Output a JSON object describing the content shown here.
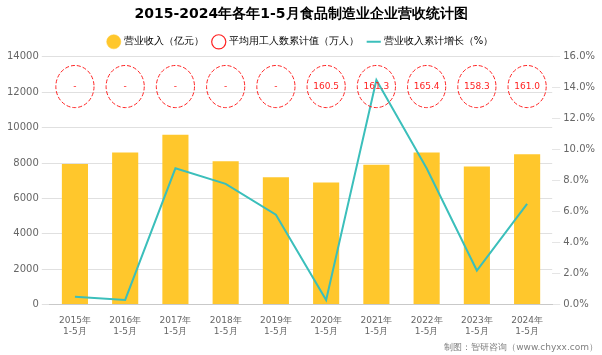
{
  "chart_data": {
    "type": "bar",
    "title": "2015-2024年各年1-5月食品制造业企业营收统计图",
    "categories": [
      "2015年\n1-5月",
      "2016年\n1-5月",
      "2017年\n1-5月",
      "2018年\n1-5月",
      "2019年\n1-5月",
      "2020年\n1-5月",
      "2021年\n1-5月",
      "2022年\n1-5月",
      "2023年\n1-5月",
      "2024年\n1-5月"
    ],
    "series": [
      {
        "name": "营业收入（亿元）",
        "type": "bar",
        "color": "#FFC72C",
        "values": [
          7950,
          8600,
          9600,
          8100,
          7200,
          6900,
          7900,
          8600,
          7800,
          8500
        ]
      },
      {
        "name": "平均用工人数累计值（万人）",
        "type": "text",
        "color": "#FF2222",
        "marker": "circle",
        "line_style": "dashed",
        "values": [
          null,
          null,
          null,
          null,
          null,
          160.5,
          161.3,
          165.4,
          158.3,
          161.0
        ],
        "value_labels": [
          "-",
          "-",
          "-",
          "-",
          "-",
          "160.5",
          "161.3",
          "165.4",
          "158.3",
          "161.0"
        ]
      },
      {
        "name": "营业收入累计增长（%）",
        "type": "line",
        "axis": "y2",
        "color": "#3BBFBB",
        "values": [
          0.005,
          0.003,
          0.088,
          0.078,
          0.058,
          0.003,
          0.145,
          0.088,
          0.022,
          0.065
        ]
      }
    ],
    "ylim": [
      0,
      14000
    ],
    "yticks": [
      0,
      2000,
      4000,
      6000,
      8000,
      10000,
      12000,
      14000
    ],
    "y2lim": [
      0.0,
      0.16
    ],
    "y2ticks": [
      {
        "value": 0.0,
        "label": "0.0%"
      },
      {
        "value": 0.02,
        "label": "2.0%"
      },
      {
        "value": 0.04,
        "label": "4.0%"
      },
      {
        "value": 0.06,
        "label": "6.0%"
      },
      {
        "value": 0.08,
        "label": "8.0%"
      },
      {
        "value": 0.1,
        "label": "10.0%"
      },
      {
        "value": 0.12,
        "label": "12.0%"
      },
      {
        "value": 0.14,
        "label": "14.0%"
      },
      {
        "value": 0.16,
        "label": "16.0%"
      }
    ],
    "grid": true,
    "legend": "top",
    "annotations": [
      "制图：智研咨询（www.chyxx.com）"
    ]
  }
}
